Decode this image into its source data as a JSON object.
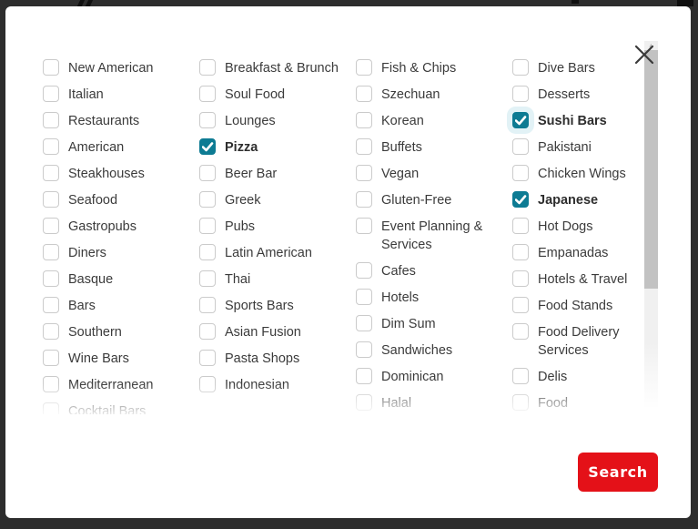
{
  "colors": {
    "overlay": "#2d2d2d",
    "modal_bg": "#ffffff",
    "checked_teal": "#0d7b93",
    "checkbox_border": "#cbcbcb",
    "search_red": "#e41118",
    "scrollbar_track": "#f0f0f0",
    "scrollbar_thumb": "#c2c2c2"
  },
  "icons": {
    "close": "x-close",
    "check": "checkmark",
    "scroll_up_arrow": "▲"
  },
  "columns": [
    {
      "items": [
        {
          "label": "New American",
          "checked": false
        },
        {
          "label": "Italian",
          "checked": false
        },
        {
          "label": "Restaurants",
          "checked": false
        },
        {
          "label": "American",
          "checked": false
        },
        {
          "label": "Steakhouses",
          "checked": false
        },
        {
          "label": "Seafood",
          "checked": false
        },
        {
          "label": "Gastropubs",
          "checked": false
        },
        {
          "label": "Diners",
          "checked": false
        },
        {
          "label": "Basque",
          "checked": false
        },
        {
          "label": "Bars",
          "checked": false
        },
        {
          "label": "Southern",
          "checked": false
        },
        {
          "label": "Wine Bars",
          "checked": false
        },
        {
          "label": "Mediterranean",
          "checked": false
        },
        {
          "label": "Cocktail Bars",
          "checked": false
        }
      ]
    },
    {
      "items": [
        {
          "label": "Breakfast & Brunch",
          "checked": false
        },
        {
          "label": "Soul Food",
          "checked": false
        },
        {
          "label": "Lounges",
          "checked": false
        },
        {
          "label": "Pizza",
          "checked": true
        },
        {
          "label": "Beer Bar",
          "checked": false
        },
        {
          "label": "Greek",
          "checked": false
        },
        {
          "label": "Pubs",
          "checked": false
        },
        {
          "label": "Latin American",
          "checked": false
        },
        {
          "label": "Thai",
          "checked": false
        },
        {
          "label": "Sports Bars",
          "checked": false
        },
        {
          "label": "Asian Fusion",
          "checked": false
        },
        {
          "label": "Pasta Shops",
          "checked": false
        },
        {
          "label": "Indonesian",
          "checked": false
        }
      ]
    },
    {
      "items": [
        {
          "label": "Fish & Chips",
          "checked": false
        },
        {
          "label": "Szechuan",
          "checked": false
        },
        {
          "label": "Korean",
          "checked": false
        },
        {
          "label": "Buffets",
          "checked": false
        },
        {
          "label": "Vegan",
          "checked": false
        },
        {
          "label": "Gluten-Free",
          "checked": false
        },
        {
          "label": "Event Planning & Services",
          "checked": false
        },
        {
          "label": "Cafes",
          "checked": false
        },
        {
          "label": "Hotels",
          "checked": false
        },
        {
          "label": "Dim Sum",
          "checked": false
        },
        {
          "label": "Sandwiches",
          "checked": false
        },
        {
          "label": "Dominican",
          "checked": false
        },
        {
          "label": "Halal",
          "checked": false
        }
      ]
    },
    {
      "items": [
        {
          "label": "Dive Bars",
          "checked": false
        },
        {
          "label": "Desserts",
          "checked": false
        },
        {
          "label": "Sushi Bars",
          "checked": true,
          "halo": true
        },
        {
          "label": "Pakistani",
          "checked": false
        },
        {
          "label": "Chicken Wings",
          "checked": false
        },
        {
          "label": "Japanese",
          "checked": true
        },
        {
          "label": "Hot Dogs",
          "checked": false
        },
        {
          "label": "Empanadas",
          "checked": false
        },
        {
          "label": "Hotels & Travel",
          "checked": false
        },
        {
          "label": "Food Stands",
          "checked": false
        },
        {
          "label": "Food Delivery Services",
          "checked": false
        },
        {
          "label": "Delis",
          "checked": false
        },
        {
          "label": "Food",
          "checked": false
        }
      ]
    }
  ],
  "search": {
    "label": "Search"
  }
}
